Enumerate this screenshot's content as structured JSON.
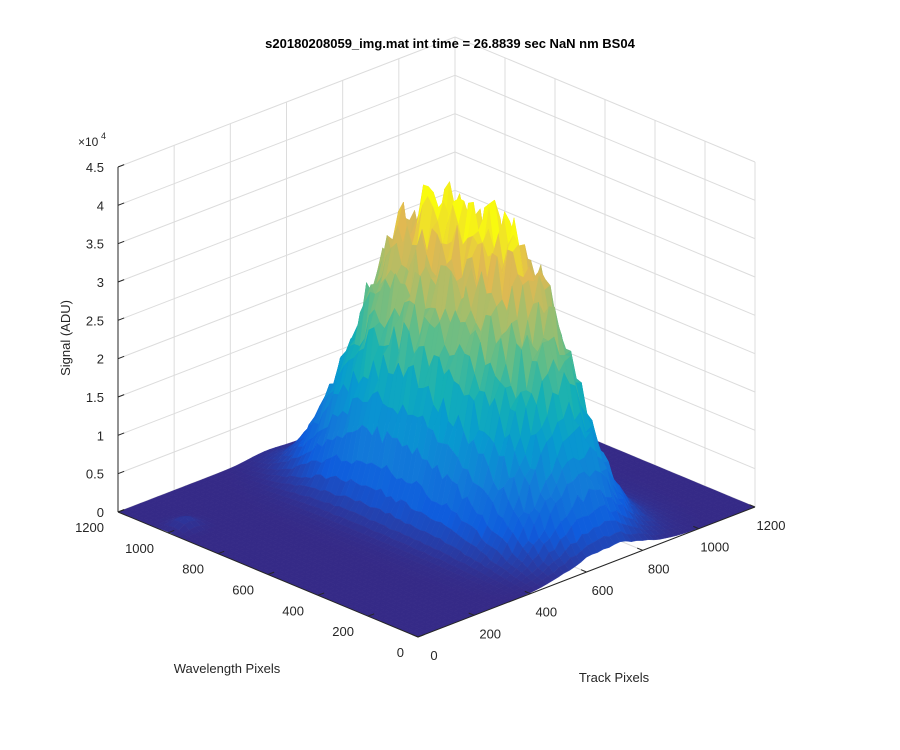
{
  "chart_data": {
    "type": "surface",
    "title": "s20180208059_img.mat int time = 26.8839 sec  NaN nm BS04",
    "xlabel": "Track Pixels",
    "ylabel": "Wavelength Pixels",
    "zlabel": "Signal (ADU)",
    "z_multiplier_label": "×10",
    "z_multiplier_exponent": "4",
    "xlim": [
      0,
      1200
    ],
    "ylim": [
      0,
      1200
    ],
    "zlim": [
      0,
      45000
    ],
    "x_ticks": [
      "0",
      "200",
      "400",
      "600",
      "800",
      "1000",
      "1200"
    ],
    "y_ticks": [
      "0",
      "200",
      "400",
      "600",
      "800",
      "1000",
      "1200"
    ],
    "z_ticks": [
      "0",
      "0.5",
      "1",
      "1.5",
      "2",
      "2.5",
      "3",
      "3.5",
      "4",
      "4.5"
    ],
    "grid": true,
    "colormap": "parula",
    "background_level": 0,
    "peak": {
      "track_center": 680,
      "track_width": 160,
      "wavelength_center": 560,
      "wavelength_width": 420,
      "max_signal": 37500
    },
    "secondary_ridge": {
      "track_center": 520,
      "track_width": 80,
      "wavelength_center": 640,
      "wavelength_width": 320,
      "max_signal": 9000
    },
    "small_bump": {
      "track": 60,
      "wavelength": 1000,
      "max_signal": 1200
    }
  }
}
